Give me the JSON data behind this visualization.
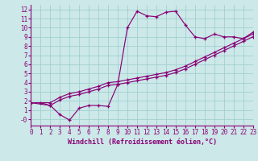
{
  "xlabel": "Windchill (Refroidissement éolien,°C)",
  "bg_color": "#cce8e8",
  "line_color": "#880077",
  "grid_color": "#99cccc",
  "xlim": [
    0,
    23
  ],
  "ylim": [
    -0.7,
    12.5
  ],
  "xticks": [
    0,
    1,
    2,
    3,
    4,
    5,
    6,
    7,
    8,
    9,
    10,
    11,
    12,
    13,
    14,
    15,
    16,
    17,
    18,
    19,
    20,
    21,
    22,
    23
  ],
  "yticks": [
    0,
    1,
    2,
    3,
    4,
    5,
    6,
    7,
    8,
    9,
    10,
    11,
    12
  ],
  "yticklabels": [
    "-0",
    "1",
    "2",
    "3",
    "4",
    "5",
    "6",
    "7",
    "8",
    "9",
    "10",
    "11",
    "12"
  ],
  "line1_x": [
    0,
    1,
    2,
    3,
    4,
    5,
    6,
    7,
    8,
    9,
    10,
    11,
    12,
    13,
    14,
    15,
    16,
    17,
    18,
    19,
    20,
    21,
    22,
    23
  ],
  "line1_y": [
    1.8,
    1.8,
    1.5,
    0.5,
    -0.1,
    1.2,
    1.5,
    1.5,
    1.4,
    3.8,
    10.0,
    11.8,
    11.3,
    11.2,
    11.7,
    11.8,
    10.3,
    9.0,
    8.8,
    9.3,
    9.0,
    9.0,
    8.8,
    9.5
  ],
  "line2_x": [
    0,
    2,
    3,
    4,
    5,
    6,
    7,
    8,
    9,
    10,
    11,
    12,
    13,
    14,
    15,
    16,
    17,
    18,
    19,
    20,
    21,
    22,
    23
  ],
  "line2_y": [
    1.8,
    1.8,
    2.4,
    2.8,
    3.0,
    3.3,
    3.6,
    4.0,
    4.1,
    4.3,
    4.5,
    4.7,
    4.9,
    5.1,
    5.4,
    5.8,
    6.3,
    6.8,
    7.3,
    7.8,
    8.3,
    8.8,
    9.3
  ],
  "line3_x": [
    0,
    2,
    3,
    4,
    5,
    6,
    7,
    8,
    9,
    10,
    11,
    12,
    13,
    14,
    15,
    16,
    17,
    18,
    19,
    20,
    21,
    22,
    23
  ],
  "line3_y": [
    1.8,
    1.5,
    2.1,
    2.5,
    2.7,
    3.0,
    3.3,
    3.7,
    3.8,
    4.0,
    4.2,
    4.4,
    4.6,
    4.8,
    5.1,
    5.5,
    6.0,
    6.5,
    7.0,
    7.5,
    8.0,
    8.5,
    9.0
  ]
}
